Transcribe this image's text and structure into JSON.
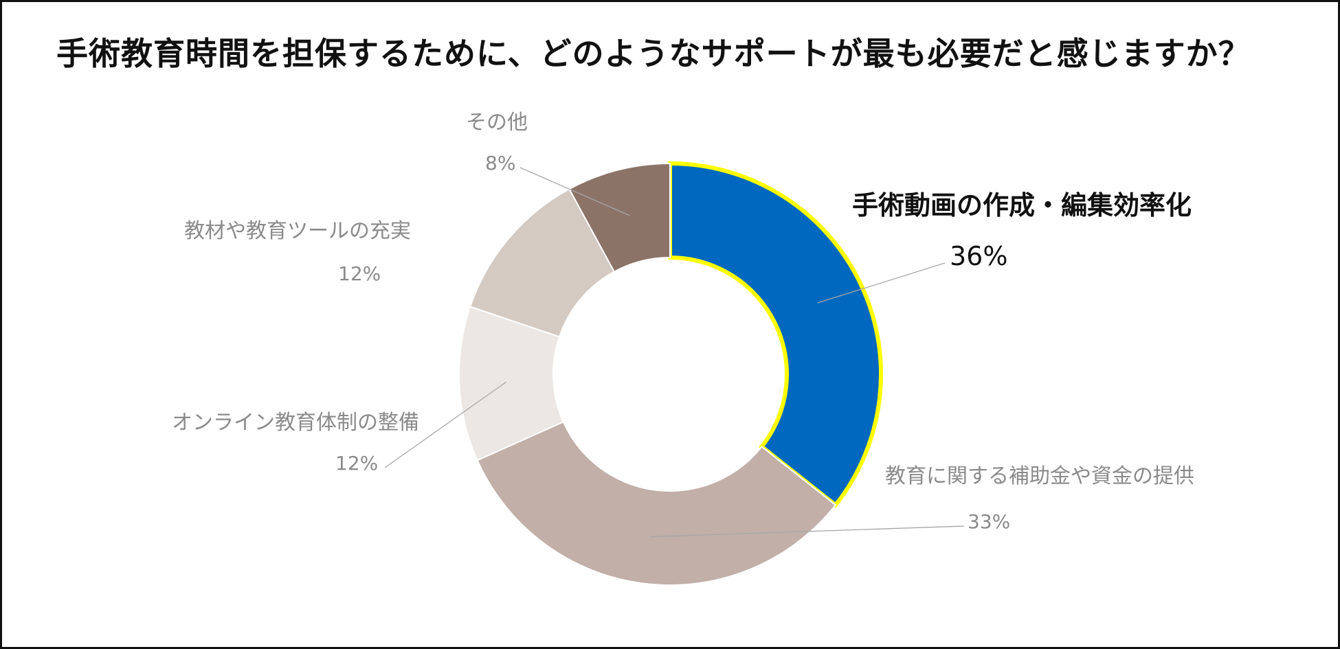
{
  "title": "手術教育時間を担保するために、どのようなサポートが最も必要だと感じますか？",
  "chart_data": {
    "type": "pie",
    "variant": "donut",
    "title": "手術教育時間を担保するために、どのようなサポートが最も必要だと感じますか？",
    "series": [
      {
        "name": "",
        "values": [
          36,
          33,
          12,
          12,
          8
        ]
      }
    ],
    "categories": [
      "手術動画の作成・編集効率化",
      "教育に関する補助金や資金の提供",
      "オンライン教育体制の整備",
      "教材や教育ツールの充実",
      "その他"
    ],
    "value_labels": [
      "36%",
      "33%",
      "12%",
      "12%",
      "8%"
    ],
    "colors": [
      "#0068BE",
      "#C1AFA8",
      "#ECE7E3",
      "#D4CAC2",
      "#8C7367"
    ],
    "highlight": {
      "category": "手術動画の作成・編集効率化",
      "outline_color": "#FFFF00"
    },
    "legend": "none"
  }
}
